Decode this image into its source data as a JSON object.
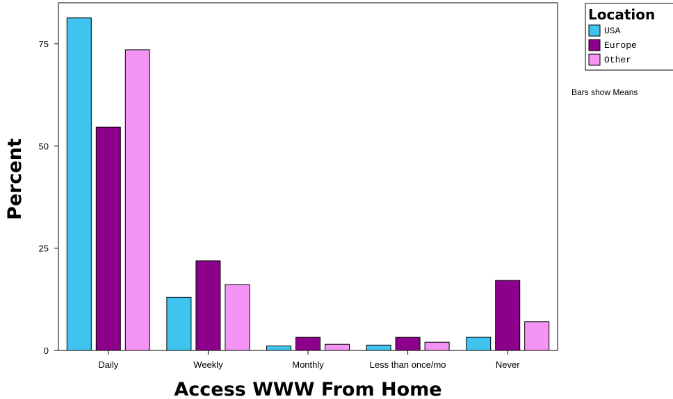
{
  "chart_data": {
    "type": "bar",
    "categories": [
      "Daily",
      "Weekly",
      "Monthly",
      "Less than once/mo",
      "Never"
    ],
    "series": [
      {
        "name": "USA",
        "color": "#3fc4f0",
        "values": [
          81.3,
          13.0,
          1.1,
          1.3,
          3.2
        ]
      },
      {
        "name": "Europe",
        "color": "#8c008c",
        "values": [
          54.6,
          21.9,
          3.2,
          3.2,
          17.1
        ]
      },
      {
        "name": "Other",
        "color": "#f494f4",
        "values": [
          73.5,
          16.1,
          1.5,
          2.0,
          7.0
        ]
      }
    ],
    "xlabel": "Access WWW From Home",
    "ylabel": "Percent",
    "ylim": [
      0,
      85
    ],
    "yticks": [
      0,
      25,
      50,
      75
    ],
    "legend_title": "Location",
    "legend_position": "top-right",
    "note": "Bars show Means",
    "grid": false
  }
}
